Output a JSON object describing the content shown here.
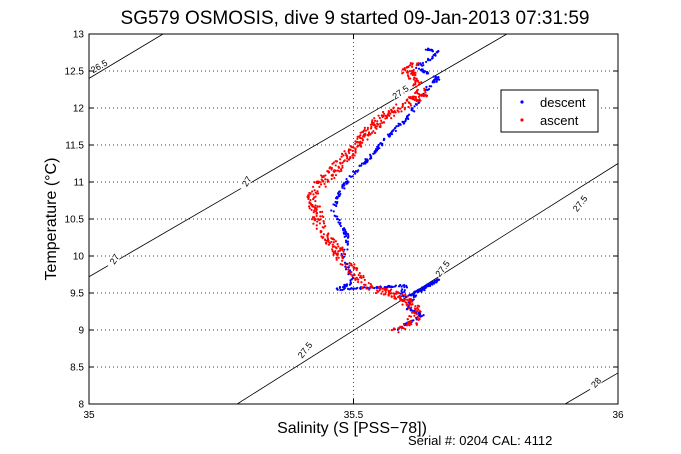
{
  "chart_data": {
    "type": "scatter",
    "title": "SG579 OSMOSIS, dive 9 started 09-Jan-2013 07:31:59",
    "xlabel": "Salinity (S [PSS−78])",
    "ylabel": "Temperature (°C)",
    "xlim": [
      35,
      36
    ],
    "ylim": [
      8,
      13
    ],
    "x_ticks": [
      "35",
      "35.5",
      "36"
    ],
    "y_ticks": [
      "8",
      "8.5",
      "9",
      "9.5",
      "10",
      "10.5",
      "11",
      "11.5",
      "12",
      "12.5",
      "13"
    ],
    "grid": true,
    "legend": "upper-right",
    "footer": "Serial #: 0204  CAL: 4112",
    "contours": [
      {
        "label": "26.5",
        "x1": 35.0,
        "y1": 12.4,
        "x2": 35.14,
        "y2": 13.0
      },
      {
        "label": "27",
        "x1": 35.0,
        "y1": 9.72,
        "x2": 35.79,
        "y2": 13.0
      },
      {
        "label": "27.5",
        "x1": 35.28,
        "y1": 8.0,
        "x2": 36.0,
        "y2": 11.25
      },
      {
        "label": "28",
        "x1": 35.9,
        "y1": 8.0,
        "x2": 36.0,
        "y2": 8.42
      }
    ],
    "contour_label_positions": [
      {
        "text": "26.5",
        "x": 35.02,
        "y": 12.55,
        "angle": -30
      },
      {
        "text": "27",
        "x": 35.05,
        "y": 9.95,
        "angle": -58
      },
      {
        "text": "27",
        "x": 35.3,
        "y": 11.0,
        "angle": -58
      },
      {
        "text": "27.5",
        "x": 35.59,
        "y": 12.2,
        "angle": -35
      },
      {
        "text": "27.5",
        "x": 35.67,
        "y": 9.82,
        "angle": -52
      },
      {
        "text": "27.5",
        "x": 35.41,
        "y": 8.72,
        "angle": -52
      },
      {
        "text": "27.5",
        "x": 35.93,
        "y": 10.7,
        "angle": -52
      },
      {
        "text": "28",
        "x": 35.96,
        "y": 8.28,
        "angle": -48
      }
    ],
    "series": [
      {
        "name": "descent",
        "color": "#0000ff",
        "path": [
          [
            35.64,
            12.8
          ],
          [
            35.66,
            12.76
          ],
          [
            35.64,
            12.64
          ],
          [
            35.62,
            12.55
          ],
          [
            35.64,
            12.48
          ],
          [
            35.66,
            12.4
          ],
          [
            35.63,
            12.2
          ],
          [
            35.62,
            12.05
          ],
          [
            35.6,
            11.85
          ],
          [
            35.57,
            11.65
          ],
          [
            35.55,
            11.5
          ],
          [
            35.52,
            11.25
          ],
          [
            35.49,
            11.05
          ],
          [
            35.47,
            10.8
          ],
          [
            35.46,
            10.6
          ],
          [
            35.48,
            10.4
          ],
          [
            35.49,
            10.2
          ],
          [
            35.48,
            10.0
          ],
          [
            35.49,
            9.8
          ],
          [
            35.5,
            9.65
          ],
          [
            35.47,
            9.55
          ],
          [
            35.55,
            9.58
          ],
          [
            35.6,
            9.6
          ],
          [
            35.59,
            9.46
          ],
          [
            35.6,
            9.44
          ],
          [
            35.66,
            9.68
          ],
          [
            35.62,
            9.5
          ],
          [
            35.6,
            9.3
          ],
          [
            35.63,
            9.2
          ],
          [
            35.6,
            9.08
          ],
          [
            35.58,
            9.0
          ]
        ],
        "spread": 0.004,
        "n": 500
      },
      {
        "name": "ascent",
        "color": "#ff0000",
        "path": [
          [
            35.58,
            9.0
          ],
          [
            35.61,
            9.1
          ],
          [
            35.62,
            9.25
          ],
          [
            35.6,
            9.4
          ],
          [
            35.57,
            9.5
          ],
          [
            35.52,
            9.6
          ],
          [
            35.5,
            9.78
          ],
          [
            35.48,
            9.95
          ],
          [
            35.47,
            10.1
          ],
          [
            35.44,
            10.3
          ],
          [
            35.43,
            10.55
          ],
          [
            35.42,
            10.8
          ],
          [
            35.44,
            11.0
          ],
          [
            35.47,
            11.2
          ],
          [
            35.5,
            11.45
          ],
          [
            35.53,
            11.7
          ],
          [
            35.56,
            11.9
          ],
          [
            35.6,
            12.05
          ],
          [
            35.63,
            12.2
          ],
          [
            35.62,
            12.35
          ],
          [
            35.6,
            12.5
          ],
          [
            35.62,
            12.62
          ]
        ],
        "spread": 0.012,
        "n": 650
      }
    ]
  }
}
